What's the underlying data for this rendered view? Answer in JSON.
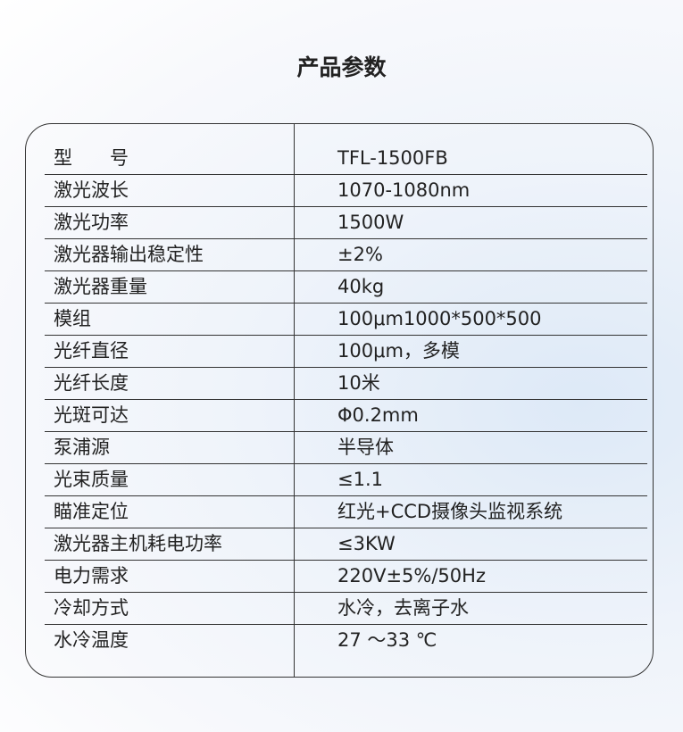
{
  "title": "产品参数",
  "table": {
    "rows": [
      [
        "型　　号",
        "TFL-1500FB"
      ],
      [
        "激光波长",
        "1070-1080nm"
      ],
      [
        "激光功率",
        "1500W"
      ],
      [
        "激光器输出稳定性",
        "±2%"
      ],
      [
        "激光器重量",
        "40kg"
      ],
      [
        "模组",
        "100μm1000*500*500"
      ],
      [
        "光纤直径",
        "100μm，多模"
      ],
      [
        "光纤长度",
        "10米"
      ],
      [
        "光斑可达",
        "Φ0.2mm"
      ],
      [
        "泵浦源",
        "半导体"
      ],
      [
        "光束质量",
        "≤1.1"
      ],
      [
        "瞄准定位",
        "红光+CCD摄像头监视系统"
      ],
      [
        "激光器主机耗电功率",
        "≤3KW"
      ],
      [
        "电力需求",
        "220V±5%/50Hz"
      ],
      [
        "冷却方式",
        "水冷，去离子水"
      ],
      [
        "水冷温度",
        "27 ～33 ℃"
      ]
    ]
  }
}
